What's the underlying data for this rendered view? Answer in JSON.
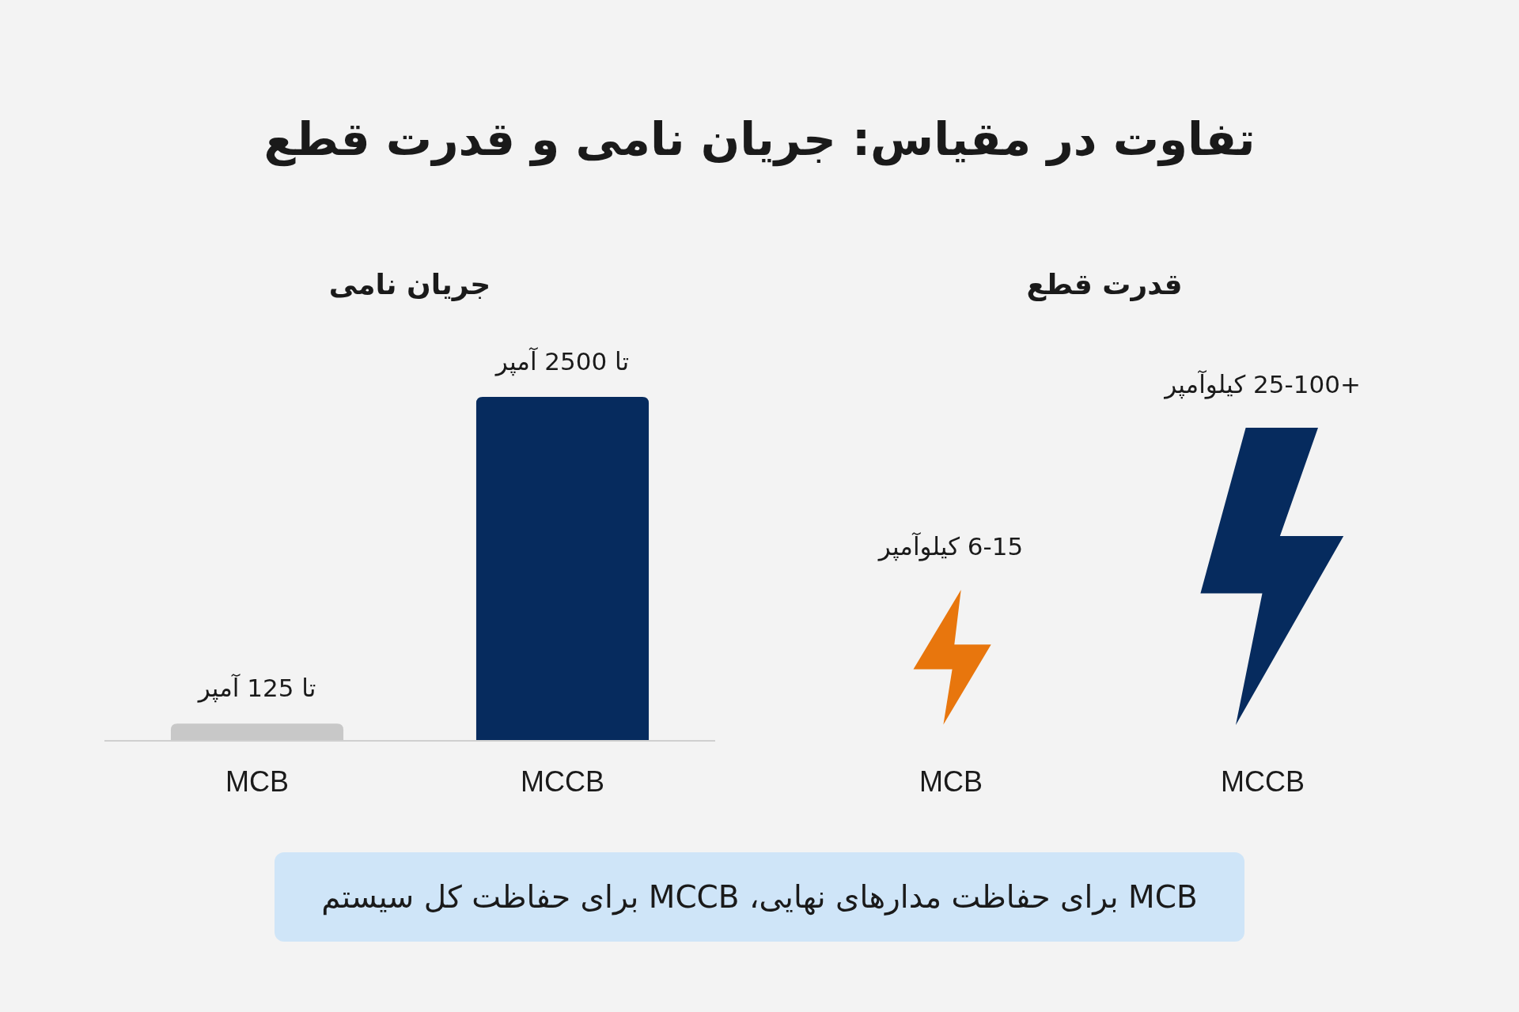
{
  "chart_data": [
    {
      "type": "other",
      "title": "تفاوت در مقیاس: جریان نامی و قدرت قطع",
      "annotations": [
        "MCB برای حفاظت مدارهای نهایی، MCCB برای حفاظت کل سیستم"
      ]
    },
    {
      "type": "bar",
      "title": "جریان نامی",
      "categories": [
        "MCB",
        "MCCB"
      ],
      "values": [
        125,
        2500
      ],
      "colors": [
        "#c8c8c8",
        "#062b5e"
      ],
      "value_labels": [
        "تا 125 آمپر",
        "تا 2500 آمپر"
      ]
    },
    {
      "type": "other",
      "title": "قدرت قطع",
      "categories": [
        "MCB",
        "MCCB"
      ],
      "value_labels": [
        "6-15 کیلوآمپر",
        "+25-100 کیلوآمپر"
      ],
      "colors": [
        "#e8760d",
        "#062b5e"
      ]
    }
  ]
}
